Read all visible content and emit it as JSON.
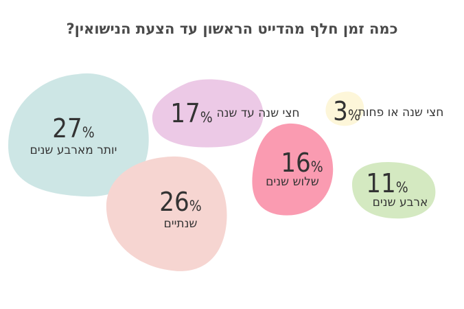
{
  "chart_data": {
    "type": "bubble",
    "title": "כמה זמן חלף מהדייט הראשון עד הצעת הנישואין?",
    "unit": "%",
    "categories": [
      "יותר מארבע שנים",
      "חצי שנה עד שנה",
      "חצי שנה או פחות",
      "שלוש שנים",
      "ארבע שנים",
      "שנתיים"
    ],
    "values": [
      27,
      17,
      3,
      16,
      11,
      26
    ],
    "colors": [
      "#cde6e5",
      "#ecc9e6",
      "#fdf6d9",
      "#fa9bb1",
      "#d4e9c1",
      "#f6d5d1"
    ]
  }
}
